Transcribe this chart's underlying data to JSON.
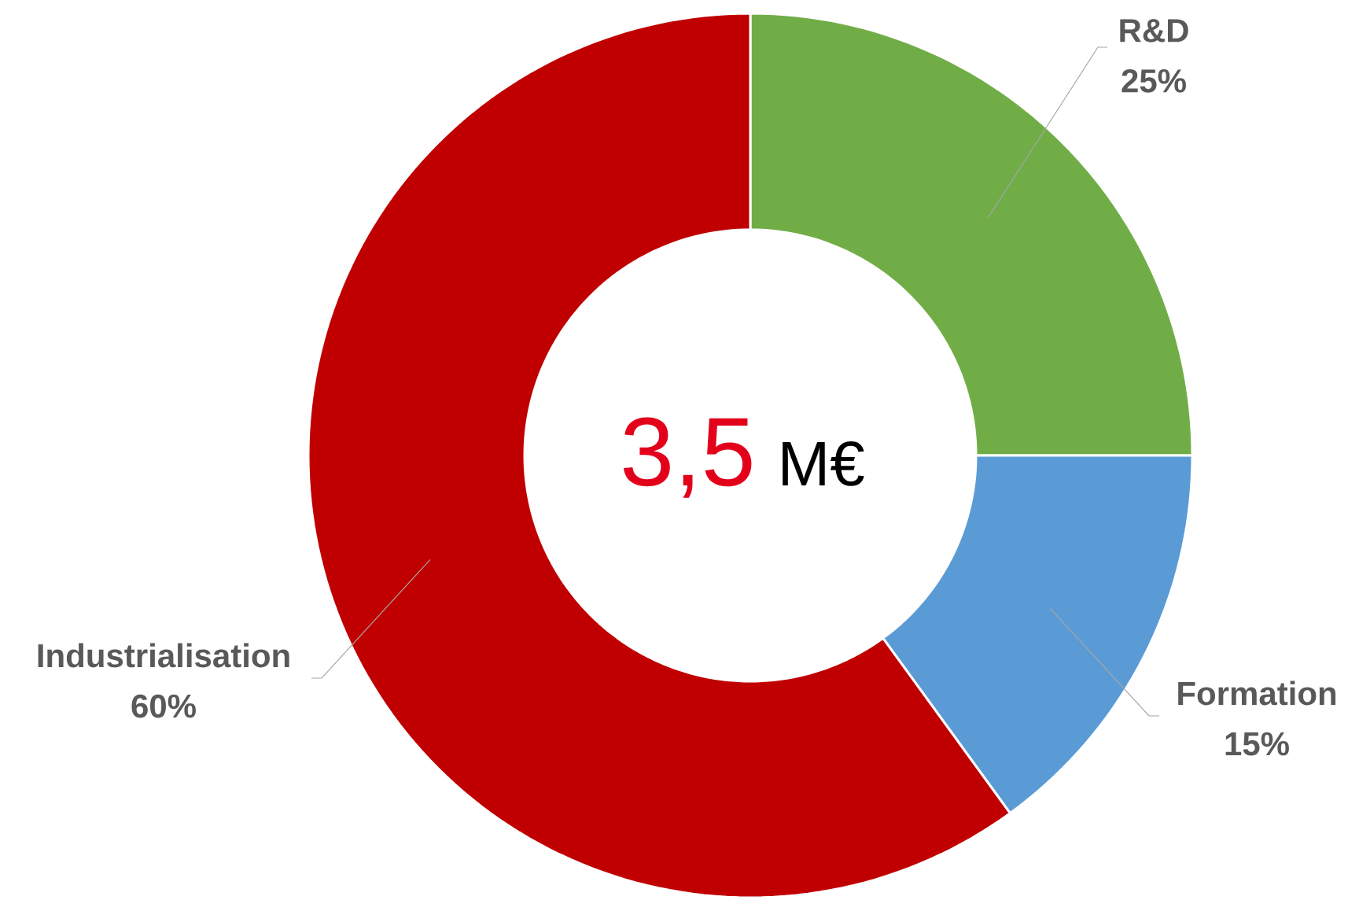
{
  "chart_data": {
    "type": "donut",
    "categories": [
      "R&D",
      "Formation",
      "Industrialisation"
    ],
    "values": [
      25,
      15,
      60
    ],
    "colors": [
      "#70ad47",
      "#5b9bd5",
      "#c00000"
    ],
    "value_labels": [
      "25%",
      "15%",
      "60%"
    ],
    "annotations": [
      "3,5",
      "M€"
    ]
  }
}
